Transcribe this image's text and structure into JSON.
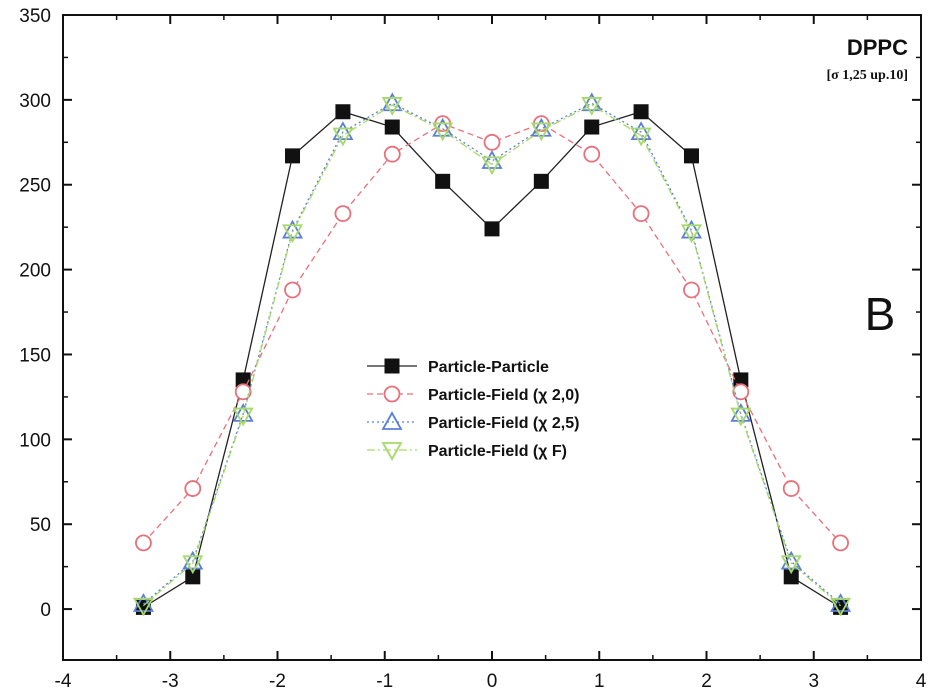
{
  "chart_data": {
    "type": "line",
    "title": "DPPC",
    "subtitle": "[σ 1,25 up.10]",
    "panel_label": "B",
    "xlabel": "",
    "ylabel": "",
    "xlim": [
      -4,
      4
    ],
    "ylim": [
      -30,
      350
    ],
    "xticks": [
      -4,
      -3,
      -2,
      -1,
      0,
      1,
      2,
      3,
      4
    ],
    "yticks": [
      0,
      50,
      100,
      150,
      200,
      250,
      300,
      350
    ],
    "grid": false,
    "legend_position": "center",
    "x": [
      -3.25,
      -2.79,
      -2.32,
      -1.86,
      -1.39,
      -0.93,
      -0.46,
      0,
      0.46,
      0.93,
      1.39,
      1.86,
      2.32,
      2.79,
      3.25
    ],
    "series": [
      {
        "name": "Particle-Particle",
        "marker": "filled-square",
        "line": "solid",
        "color": "#222222",
        "values": [
          1,
          19,
          135,
          267,
          293,
          284,
          252,
          224,
          252,
          284,
          293,
          267,
          135,
          19,
          1
        ]
      },
      {
        "name": "Particle-Field (χ 2,0)",
        "marker": "open-circle",
        "line": "dashed",
        "color": "#e8707a",
        "values": [
          39,
          71,
          128,
          188,
          233,
          268,
          286,
          275,
          286,
          268,
          233,
          188,
          128,
          71,
          39
        ]
      },
      {
        "name": "Particle-Field (χ 2,5)",
        "marker": "open-triangle-up",
        "line": "dotted",
        "color": "#5b7fd6",
        "values": [
          3,
          28,
          115,
          223,
          281,
          298,
          283,
          264,
          283,
          298,
          281,
          223,
          115,
          28,
          3
        ]
      },
      {
        "name": "Particle-Field (χ F)",
        "marker": "open-triangle-down",
        "line": "dash-dot",
        "color": "#a6d96a",
        "values": [
          2,
          27,
          114,
          222,
          279,
          297,
          282,
          262,
          282,
          297,
          279,
          222,
          114,
          27,
          2
        ]
      }
    ]
  }
}
